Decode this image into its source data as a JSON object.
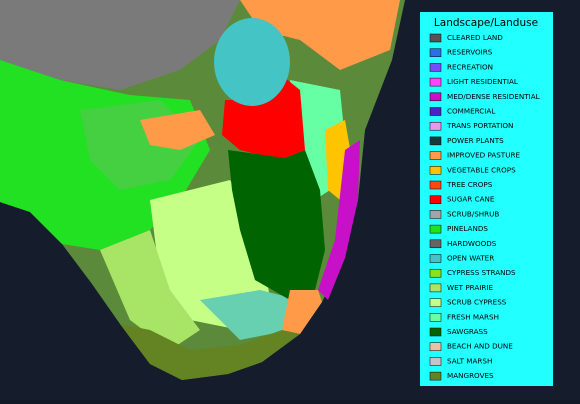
{
  "legend": {
    "title": "Landscape/Landuse",
    "items": [
      {
        "label": "CLEARED LAND",
        "color": "#555555"
      },
      {
        "label": "RESERVOIRS",
        "color": "#2a6ee8"
      },
      {
        "label": "RECREATION",
        "color": "#7a4cff"
      },
      {
        "label": "LIGHT RESIDENTIAL",
        "color": "#ff44ff"
      },
      {
        "label": "MED/DENSE RESIDENTIAL",
        "color": "#c810c8"
      },
      {
        "label": "COMMERCIAL",
        "color": "#4a24c8"
      },
      {
        "label": "TRANS PORTATION",
        "color": "#e69ae6"
      },
      {
        "label": "POWER PLANTS",
        "color": "#123c3c"
      },
      {
        "label": "IMPROVED PASTURE",
        "color": "#ff9a48"
      },
      {
        "label": "VEGETABLE CROPS",
        "color": "#ffc400"
      },
      {
        "label": "TREE CROPS",
        "color": "#ff4810"
      },
      {
        "label": "SUGAR CANE",
        "color": "#ff0000"
      },
      {
        "label": "SCRUB/SHRUB",
        "color": "#a4a4a4"
      },
      {
        "label": "PINELANDS",
        "color": "#22e022"
      },
      {
        "label": "HARDWOODS",
        "color": "#646464"
      },
      {
        "label": "OPEN WATER",
        "color": "#44c4c4"
      },
      {
        "label": "CYPRESS STRANDS",
        "color": "#86e41e"
      },
      {
        "label": "WET PRAIRIE",
        "color": "#a8e466"
      },
      {
        "label": "SCRUB CYPRESS",
        "color": "#c6ff86"
      },
      {
        "label": "FRESH MARSH",
        "color": "#66ffa4"
      },
      {
        "label": "SAWGRASS",
        "color": "#006400"
      },
      {
        "label": "BEACH AND DUNE",
        "color": "#e4c4a4"
      },
      {
        "label": "SALT MARSH",
        "color": "#c4c4c4"
      },
      {
        "label": "MANGROVES",
        "color": "#648424"
      }
    ]
  }
}
